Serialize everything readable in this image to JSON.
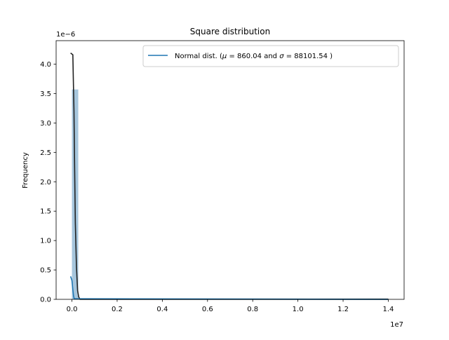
{
  "chart_data": {
    "type": "histogram",
    "title": "Square distribution",
    "ylabel": "Frequency",
    "xlabel": "",
    "x_offset_label": "1e7",
    "y_offset_label": "1e−6",
    "xlim": [
      -7.0,
      147.0
    ],
    "ylim": [
      0.0,
      4.4
    ],
    "x_ticks": [
      0.0,
      20.0,
      40.0,
      60.0,
      80.0,
      100.0,
      120.0,
      140.0
    ],
    "x_tick_labels": [
      "0.0",
      "0.2",
      "0.4",
      "0.6",
      "0.8",
      "1.0",
      "1.2",
      "1.4"
    ],
    "y_ticks": [
      0.0,
      0.5,
      1.0,
      1.5,
      2.0,
      2.5,
      3.0,
      3.5,
      4.0
    ],
    "y_tick_labels": [
      "0.0",
      "0.5",
      "1.0",
      "1.5",
      "2.0",
      "2.5",
      "3.0",
      "3.5",
      "4.0"
    ],
    "grid": false,
    "histogram_bins": [
      {
        "x0": 0.0,
        "x1": 2.8,
        "value": 3.57
      }
    ],
    "kde_curve": {
      "x": [
        -0.6,
        0.4,
        0.9,
        1.2,
        1.5,
        2.0,
        2.5,
        3.0,
        3.6,
        140.0
      ],
      "y": [
        4.19,
        4.16,
        3.2,
        2.2,
        1.3,
        0.55,
        0.15,
        0.04,
        0.0,
        0.0
      ]
    },
    "series": [
      {
        "name": "Normal dist. ($\\mu=$ 860.04 and $\\sigma=$ 88101.54 )",
        "x": [
          -0.6,
          0.0,
          0.3,
          0.7,
          1.0,
          140.0
        ],
        "y": [
          0.39,
          0.32,
          0.2,
          0.06,
          0.01,
          0.0
        ]
      }
    ],
    "legend": {
      "position": "top-right",
      "entries": [
        {
          "label_prefix": "Normal dist. (",
          "mu_symbol": "μ",
          "mu_eq": " = ",
          "mu_value": "860.04",
          "and": " and ",
          "sigma_symbol": "σ",
          "sigma_eq": " = ",
          "sigma_value": "88101.54",
          "label_suffix": " )"
        }
      ]
    },
    "colors": {
      "hist_fill": "#a6c6dd",
      "kde_line": "#222222",
      "normal_line": "#1f77b4"
    }
  }
}
